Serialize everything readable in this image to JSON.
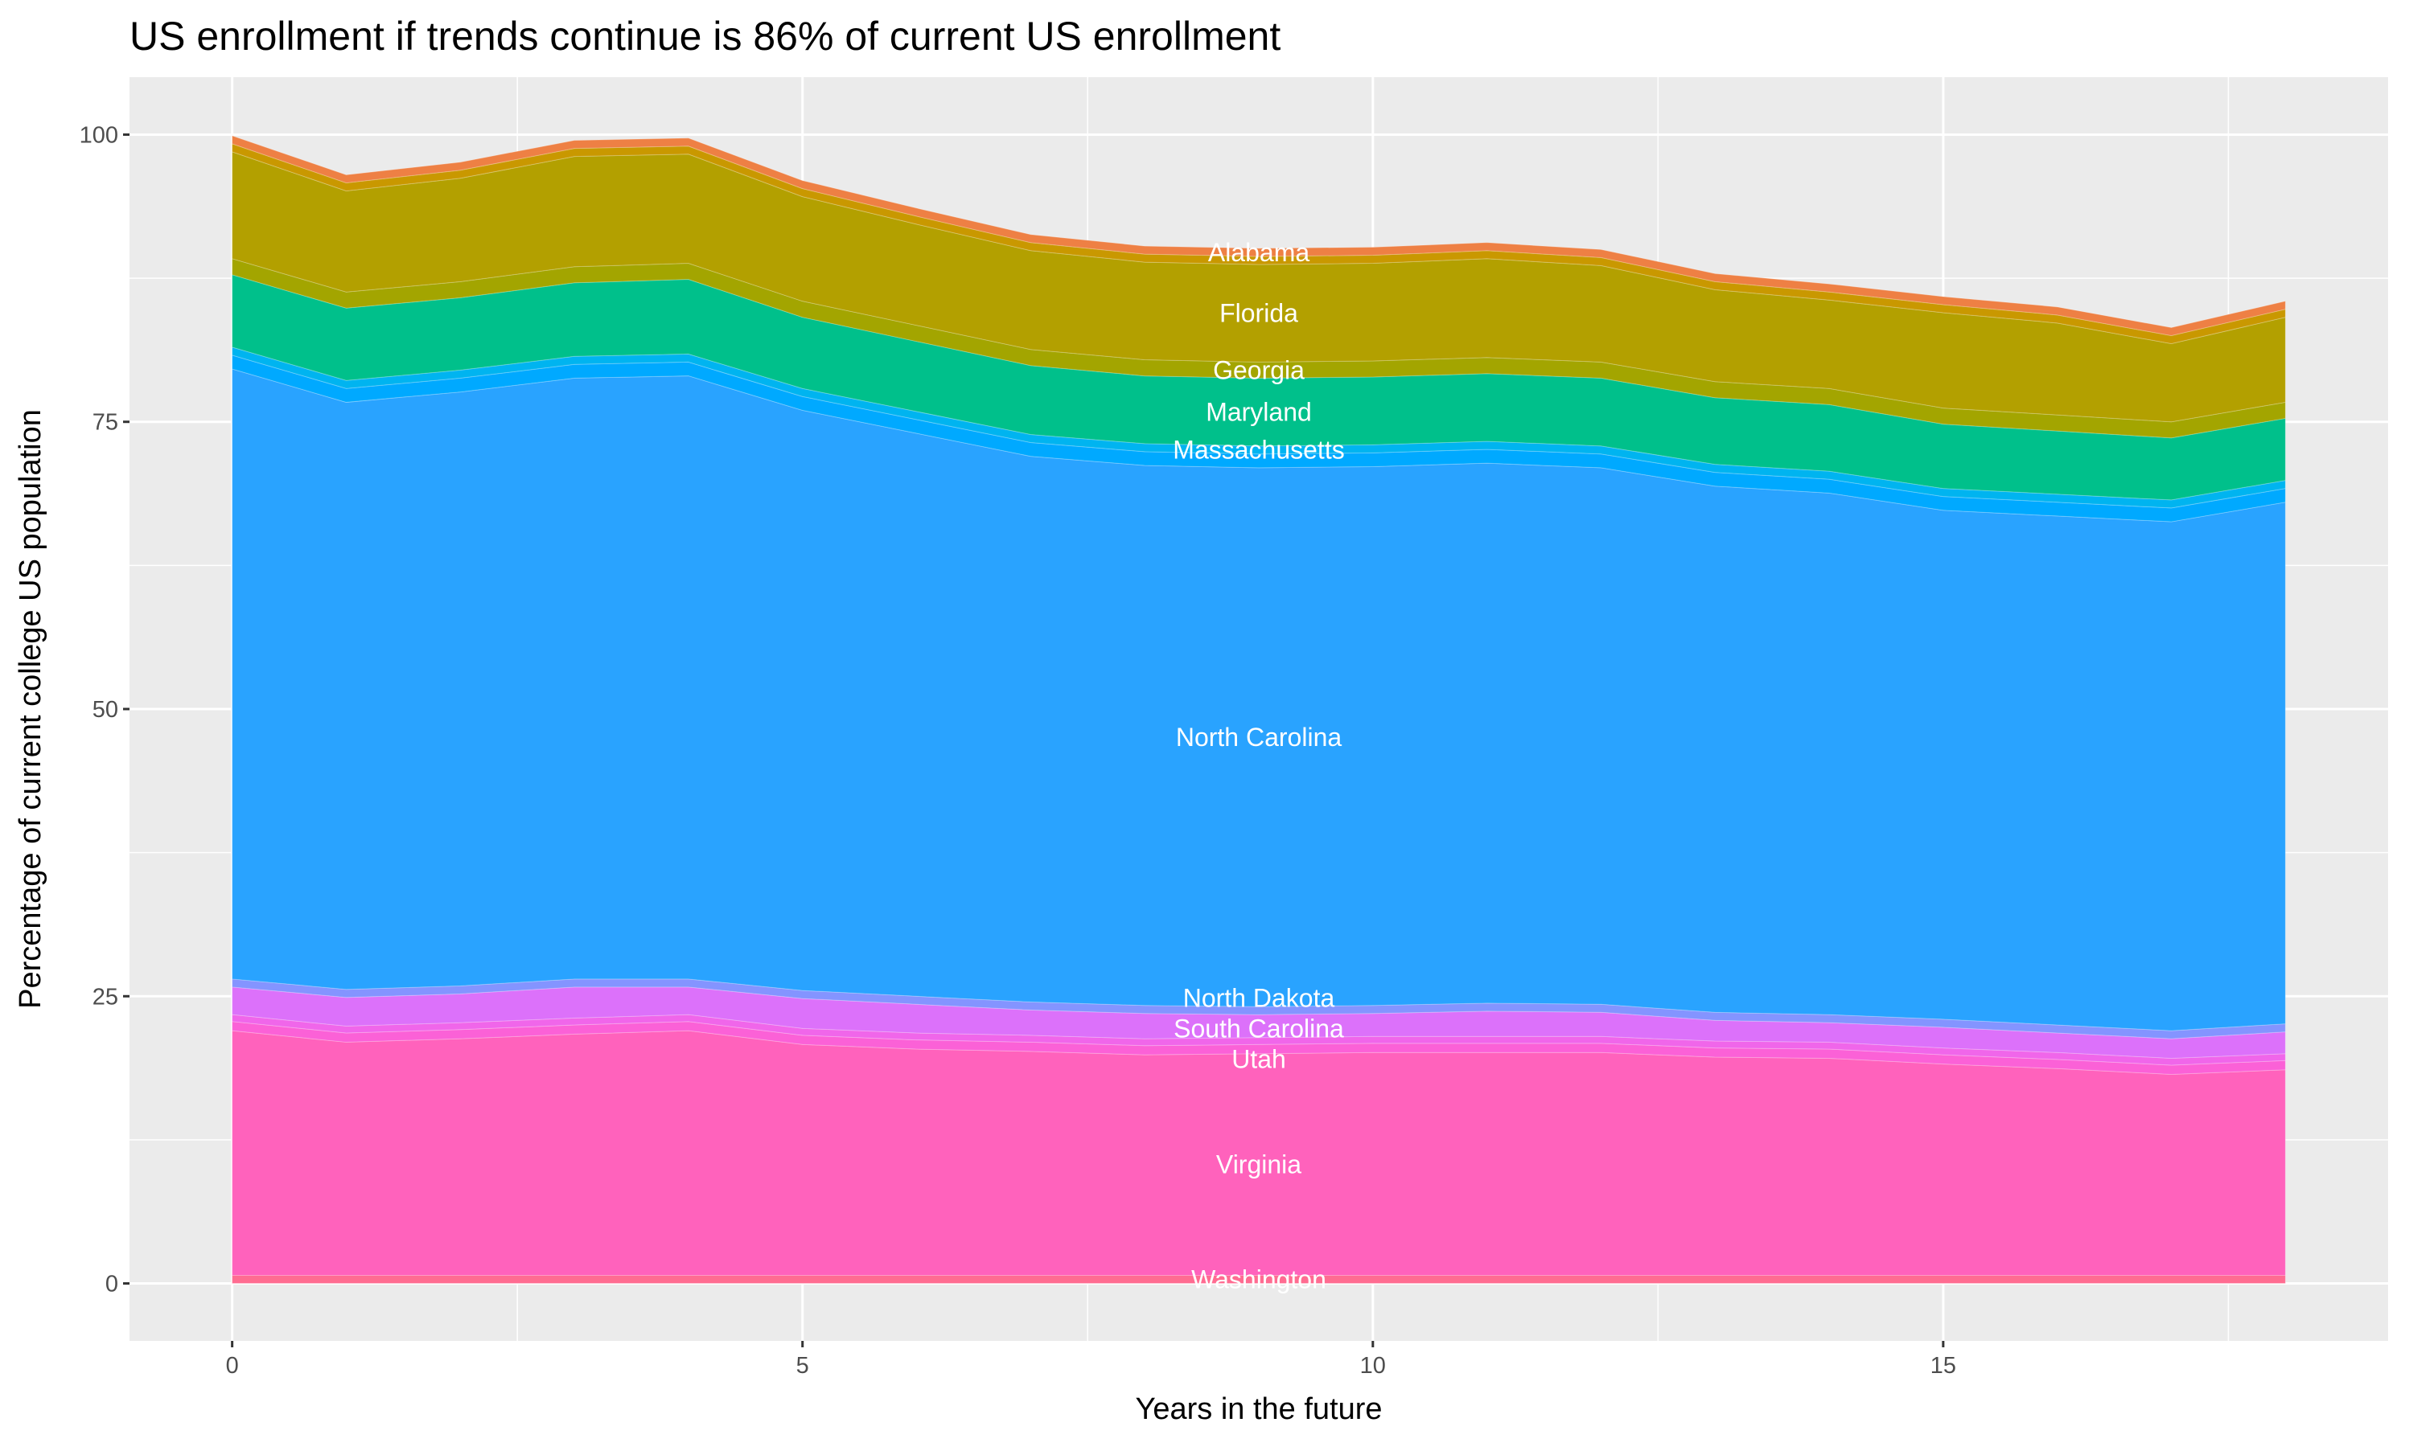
{
  "chart_data": {
    "type": "area",
    "stacked": true,
    "title": "US enrollment if trends continue is 86% of current US enrollment",
    "xlabel": "Years in the future",
    "ylabel": "Percentage of current college US population",
    "xlim": [
      -0.9,
      18.9
    ],
    "ylim": [
      -5,
      105
    ],
    "x_ticks": [
      0,
      5,
      10,
      15
    ],
    "y_ticks": [
      0,
      25,
      50,
      75,
      100
    ],
    "grid": true,
    "legend": "none",
    "label_x": 9,
    "x": [
      0,
      1,
      2,
      3,
      4,
      5,
      6,
      7,
      8,
      9,
      10,
      11,
      12,
      13,
      14,
      15,
      16,
      17,
      18
    ],
    "series": [
      {
        "name": "Washington",
        "color": "#FF6C91",
        "values": [
          0.7,
          0.7,
          0.7,
          0.7,
          0.7,
          0.7,
          0.7,
          0.7,
          0.7,
          0.7,
          0.7,
          0.7,
          0.7,
          0.7,
          0.7,
          0.7,
          0.7,
          0.7,
          0.7
        ]
      },
      {
        "name": "Virginia",
        "color": "#FF62BC",
        "values": [
          21.3,
          20.3,
          20.6,
          21.0,
          21.3,
          20.1,
          19.7,
          19.5,
          19.2,
          19.3,
          19.4,
          19.4,
          19.4,
          19.0,
          18.9,
          18.4,
          18.0,
          17.5,
          17.9
        ]
      },
      {
        "name": "Utah",
        "color": "#FB61D7",
        "values": [
          0.8,
          0.8,
          0.8,
          0.8,
          0.8,
          0.8,
          0.8,
          0.8,
          0.8,
          0.8,
          0.8,
          0.8,
          0.8,
          0.8,
          0.8,
          0.8,
          0.8,
          0.8,
          0.8
        ]
      },
      {
        "name": "",
        "color": "#F066EA",
        "values": [
          0.6,
          0.6,
          0.6,
          0.6,
          0.6,
          0.6,
          0.6,
          0.6,
          0.6,
          0.6,
          0.6,
          0.6,
          0.6,
          0.6,
          0.6,
          0.6,
          0.6,
          0.6,
          0.6
        ]
      },
      {
        "name": "South Carolina",
        "color": "#DC71FA",
        "values": [
          2.4,
          2.5,
          2.5,
          2.7,
          2.4,
          2.6,
          2.5,
          2.2,
          2.2,
          2.0,
          2.0,
          2.2,
          2.1,
          1.8,
          1.7,
          1.8,
          1.7,
          1.7,
          1.9
        ]
      },
      {
        "name": "North Dakota",
        "color": "#8494FF",
        "values": [
          0.7,
          0.7,
          0.7,
          0.7,
          0.7,
          0.7,
          0.7,
          0.7,
          0.7,
          0.7,
          0.7,
          0.7,
          0.7,
          0.7,
          0.7,
          0.7,
          0.7,
          0.7,
          0.7
        ]
      },
      {
        "name": "North Carolina",
        "color": "#29A3FF",
        "values": [
          53.1,
          51.1,
          51.7,
          52.3,
          52.5,
          50.5,
          49.0,
          47.5,
          47.0,
          46.9,
          46.9,
          47.0,
          46.7,
          45.8,
          45.4,
          44.3,
          44.3,
          44.3,
          45.4
        ]
      },
      {
        "name": "",
        "color": "#00A9FF",
        "values": [
          1.2,
          1.2,
          1.2,
          1.2,
          1.2,
          1.2,
          1.2,
          1.2,
          1.2,
          1.2,
          1.2,
          1.2,
          1.2,
          1.2,
          1.2,
          1.2,
          1.2,
          1.2,
          1.2
        ]
      },
      {
        "name": "Massachusetts",
        "color": "#00B4F0",
        "values": [
          0.7,
          0.7,
          0.7,
          0.7,
          0.7,
          0.7,
          0.7,
          0.7,
          0.7,
          0.7,
          0.7,
          0.7,
          0.7,
          0.7,
          0.7,
          0.7,
          0.7,
          0.7,
          0.7
        ]
      },
      {
        "name": "Maryland",
        "color": "#00C08B",
        "values": [
          6.3,
          6.3,
          6.3,
          6.4,
          6.5,
          6.2,
          6.1,
          6.0,
          5.9,
          5.9,
          5.9,
          5.9,
          5.9,
          5.8,
          5.8,
          5.6,
          5.5,
          5.4,
          5.4
        ]
      },
      {
        "name": "Georgia",
        "color": "#A3A500",
        "values": [
          1.4,
          1.4,
          1.4,
          1.4,
          1.4,
          1.4,
          1.4,
          1.4,
          1.4,
          1.4,
          1.4,
          1.4,
          1.4,
          1.4,
          1.4,
          1.4,
          1.4,
          1.4,
          1.4
        ]
      },
      {
        "name": "Florida",
        "color": "#B3A000",
        "values": [
          9.3,
          8.8,
          9.0,
          9.6,
          9.5,
          9.1,
          8.8,
          8.6,
          8.5,
          8.5,
          8.5,
          8.6,
          8.4,
          8.0,
          7.7,
          8.3,
          8.0,
          6.8,
          7.4
        ]
      },
      {
        "name": "",
        "color": "#C99800",
        "values": [
          0.7,
          0.7,
          0.7,
          0.7,
          0.7,
          0.7,
          0.7,
          0.7,
          0.7,
          0.7,
          0.7,
          0.7,
          0.7,
          0.7,
          0.7,
          0.7,
          0.7,
          0.7,
          0.7
        ]
      },
      {
        "name": "Alabama",
        "color": "#EE8044",
        "values": [
          0.7,
          0.7,
          0.7,
          0.7,
          0.7,
          0.7,
          0.7,
          0.7,
          0.7,
          0.7,
          0.7,
          0.7,
          0.7,
          0.7,
          0.7,
          0.7,
          0.7,
          0.7,
          0.7
        ]
      }
    ]
  }
}
